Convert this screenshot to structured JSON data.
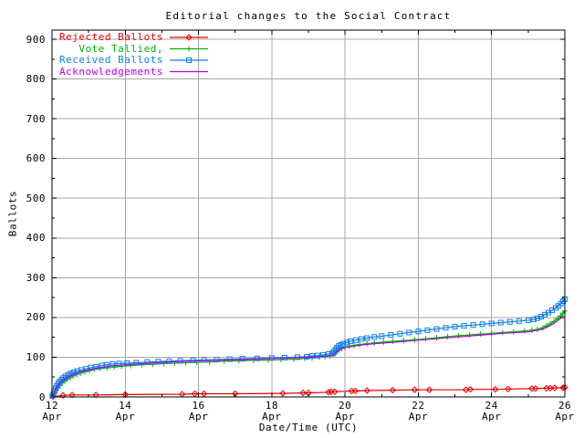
{
  "title": "Editorial changes to the Social Contract",
  "x_axis": {
    "label": "Date/Time (UTC)",
    "range": [
      12,
      26
    ],
    "major_ticks": [
      {
        "line1": "12",
        "line2": "Apr",
        "value": 12
      },
      {
        "line1": "14",
        "line2": "Apr",
        "value": 14
      },
      {
        "line1": "16",
        "line2": "Apr",
        "value": 16
      },
      {
        "line1": "18",
        "line2": "Apr",
        "value": 18
      },
      {
        "line1": "20",
        "line2": "Apr",
        "value": 20
      },
      {
        "line1": "22",
        "line2": "Apr",
        "value": 22
      },
      {
        "line1": "24",
        "line2": "Apr",
        "value": 24
      },
      {
        "line1": "26",
        "line2": "Apr",
        "value": 26
      }
    ],
    "minor_ticks": [
      13,
      15,
      17,
      19,
      21,
      23,
      25
    ]
  },
  "y_axis": {
    "label": "Ballots",
    "range": [
      0,
      923
    ],
    "major_ticks": [
      {
        "label": "0",
        "value": 0
      },
      {
        "label": "100",
        "value": 100
      },
      {
        "label": "200",
        "value": 200
      },
      {
        "label": "300",
        "value": 300
      },
      {
        "label": "400",
        "value": 400
      },
      {
        "label": "500",
        "value": 500
      },
      {
        "label": "600",
        "value": 600
      },
      {
        "label": "700",
        "value": 700
      },
      {
        "label": "800",
        "value": 800
      },
      {
        "label": "900",
        "value": 900
      }
    ],
    "minor_ticks": [
      50,
      150,
      250,
      350,
      450,
      550,
      650,
      750,
      850
    ]
  },
  "colors": {
    "background": "#ffffff",
    "grid": "#a8a8a8",
    "axis": "#000000",
    "rejected": "#e60000",
    "tallied": "#00b400",
    "received": "#0d7ee8",
    "acknowledgements": "#b400e6"
  },
  "chart_data": {
    "type": "line",
    "title": "Editorial changes to the Social Contract",
    "xlabel": "Date/Time (UTC)",
    "ylabel": "Ballots",
    "x_unit": "day of April (UTC)",
    "xlim": [
      12,
      26
    ],
    "ylim": [
      0,
      923
    ],
    "grid": true,
    "legend_position": "top-left",
    "series": [
      {
        "name": "Rejected Ballots",
        "color_key": "rejected",
        "marker": "diamond",
        "points": [
          [
            12.03,
            1
          ],
          [
            12.3,
            4
          ],
          [
            12.55,
            5
          ],
          [
            13.2,
            5
          ],
          [
            14,
            6
          ],
          [
            15.55,
            7
          ],
          [
            15.9,
            8
          ],
          [
            16.15,
            8
          ],
          [
            17,
            8
          ],
          [
            18.3,
            9
          ],
          [
            18.85,
            10
          ],
          [
            19,
            10
          ],
          [
            19.55,
            12
          ],
          [
            19.62,
            13
          ],
          [
            19.72,
            13
          ],
          [
            20.18,
            15
          ],
          [
            20.28,
            15
          ],
          [
            20.6,
            16
          ],
          [
            21.3,
            17
          ],
          [
            21.9,
            18
          ],
          [
            22.3,
            18
          ],
          [
            23.3,
            18
          ],
          [
            23.42,
            19
          ],
          [
            24.1,
            19
          ],
          [
            24.45,
            20
          ],
          [
            25.1,
            21
          ],
          [
            25.2,
            21
          ],
          [
            25.5,
            22
          ],
          [
            25.6,
            22
          ],
          [
            25.72,
            23
          ],
          [
            25.95,
            23
          ],
          [
            26,
            24
          ]
        ]
      },
      {
        "name": "Vote Tallied,",
        "color_key": "tallied",
        "marker": "plus",
        "points": [
          [
            12.04,
            2
          ],
          [
            12.08,
            9
          ],
          [
            12.12,
            16
          ],
          [
            12.17,
            23
          ],
          [
            12.22,
            29
          ],
          [
            12.28,
            35
          ],
          [
            12.35,
            40
          ],
          [
            12.42,
            45
          ],
          [
            12.5,
            49
          ],
          [
            12.58,
            53
          ],
          [
            12.68,
            57
          ],
          [
            12.78,
            60
          ],
          [
            12.9,
            63
          ],
          [
            13.02,
            66
          ],
          [
            13.15,
            69
          ],
          [
            13.3,
            71
          ],
          [
            13.5,
            73
          ],
          [
            13.7,
            75
          ],
          [
            13.9,
            77
          ],
          [
            14.15,
            79
          ],
          [
            14.45,
            81
          ],
          [
            14.75,
            82
          ],
          [
            15.05,
            84
          ],
          [
            15.35,
            85
          ],
          [
            15.65,
            86
          ],
          [
            15.95,
            87
          ],
          [
            16.3,
            88
          ],
          [
            16.7,
            90
          ],
          [
            17.1,
            91
          ],
          [
            17.5,
            92
          ],
          [
            17.9,
            93
          ],
          [
            18.25,
            94
          ],
          [
            18.6,
            95
          ],
          [
            18.9,
            97
          ],
          [
            19.1,
            98
          ],
          [
            19.3,
            100
          ],
          [
            19.45,
            101
          ],
          [
            19.58,
            103
          ],
          [
            19.68,
            105
          ],
          [
            19.73,
            109
          ],
          [
            19.78,
            114
          ],
          [
            19.84,
            118
          ],
          [
            19.91,
            122
          ],
          [
            20,
            125
          ],
          [
            20.12,
            128
          ],
          [
            20.25,
            130
          ],
          [
            20.4,
            132
          ],
          [
            20.6,
            134
          ],
          [
            20.8,
            136
          ],
          [
            21.05,
            138
          ],
          [
            21.3,
            140
          ],
          [
            21.6,
            142
          ],
          [
            21.9,
            144
          ],
          [
            22.2,
            146
          ],
          [
            22.5,
            149
          ],
          [
            22.8,
            152
          ],
          [
            23.1,
            154
          ],
          [
            23.4,
            156
          ],
          [
            23.7,
            158
          ],
          [
            24,
            160
          ],
          [
            24.3,
            162
          ],
          [
            24.6,
            164
          ],
          [
            24.9,
            166
          ],
          [
            25.1,
            168
          ],
          [
            25.25,
            170
          ],
          [
            25.4,
            174
          ],
          [
            25.5,
            179
          ],
          [
            25.6,
            184
          ],
          [
            25.7,
            190
          ],
          [
            25.8,
            197
          ],
          [
            25.88,
            204
          ],
          [
            25.95,
            211
          ],
          [
            26,
            216
          ]
        ]
      },
      {
        "name": "Received Ballots",
        "color_key": "received",
        "marker": "square",
        "points": [
          [
            12.01,
            2
          ],
          [
            12.04,
            8
          ],
          [
            12.07,
            15
          ],
          [
            12.1,
            22
          ],
          [
            12.13,
            28
          ],
          [
            12.17,
            34
          ],
          [
            12.21,
            39
          ],
          [
            12.26,
            44
          ],
          [
            12.31,
            48
          ],
          [
            12.37,
            52
          ],
          [
            12.44,
            56
          ],
          [
            12.51,
            59
          ],
          [
            12.59,
            62
          ],
          [
            12.69,
            65
          ],
          [
            12.8,
            68
          ],
          [
            12.93,
            71
          ],
          [
            13.06,
            74
          ],
          [
            13.2,
            76
          ],
          [
            13.36,
            79
          ],
          [
            13.5,
            81
          ],
          [
            13.66,
            83
          ],
          [
            13.83,
            84
          ],
          [
            14.05,
            85
          ],
          [
            14.3,
            86
          ],
          [
            14.6,
            88
          ],
          [
            14.9,
            89
          ],
          [
            15.2,
            90
          ],
          [
            15.5,
            91
          ],
          [
            15.85,
            92
          ],
          [
            16.15,
            93
          ],
          [
            16.5,
            94
          ],
          [
            16.85,
            95
          ],
          [
            17.2,
            96
          ],
          [
            17.6,
            97
          ],
          [
            18,
            98
          ],
          [
            18.35,
            99
          ],
          [
            18.7,
            100
          ],
          [
            18.95,
            101
          ],
          [
            19.1,
            103
          ],
          [
            19.25,
            104
          ],
          [
            19.4,
            106
          ],
          [
            19.55,
            108
          ],
          [
            19.65,
            110
          ],
          [
            19.7,
            114
          ],
          [
            19.74,
            119
          ],
          [
            19.78,
            124
          ],
          [
            19.82,
            128
          ],
          [
            19.88,
            131
          ],
          [
            19.95,
            134
          ],
          [
            20.05,
            137
          ],
          [
            20.15,
            140
          ],
          [
            20.3,
            143
          ],
          [
            20.45,
            146
          ],
          [
            20.6,
            148
          ],
          [
            20.8,
            151
          ],
          [
            21,
            153
          ],
          [
            21.25,
            156
          ],
          [
            21.5,
            159
          ],
          [
            21.75,
            162
          ],
          [
            22,
            165
          ],
          [
            22.25,
            168
          ],
          [
            22.5,
            171
          ],
          [
            22.75,
            174
          ],
          [
            23,
            177
          ],
          [
            23.25,
            179
          ],
          [
            23.5,
            181
          ],
          [
            23.75,
            183
          ],
          [
            24,
            185
          ],
          [
            24.25,
            187
          ],
          [
            24.5,
            189
          ],
          [
            24.75,
            191
          ],
          [
            25,
            193
          ],
          [
            25.15,
            195
          ],
          [
            25.25,
            198
          ],
          [
            25.35,
            202
          ],
          [
            25.45,
            207
          ],
          [
            25.55,
            212
          ],
          [
            25.65,
            218
          ],
          [
            25.75,
            224
          ],
          [
            25.82,
            229
          ],
          [
            25.89,
            235
          ],
          [
            25.95,
            241
          ],
          [
            26,
            246
          ]
        ]
      },
      {
        "name": "Acknowledgements",
        "color_key": "acknowledgements",
        "marker": "none",
        "points": [
          [
            12.02,
            1
          ],
          [
            12.1,
            20
          ],
          [
            12.2,
            33
          ],
          [
            12.3,
            43
          ],
          [
            12.45,
            51
          ],
          [
            12.6,
            58
          ],
          [
            12.8,
            64
          ],
          [
            13,
            69
          ],
          [
            13.3,
            74
          ],
          [
            13.6,
            78
          ],
          [
            14,
            81
          ],
          [
            14.5,
            84
          ],
          [
            15,
            87
          ],
          [
            15.5,
            89
          ],
          [
            16,
            91
          ],
          [
            16.5,
            92
          ],
          [
            17,
            94
          ],
          [
            17.5,
            95
          ],
          [
            18,
            97
          ],
          [
            18.5,
            98
          ],
          [
            19,
            100
          ],
          [
            19.3,
            102
          ],
          [
            19.55,
            104
          ],
          [
            19.68,
            106
          ],
          [
            19.74,
            112
          ],
          [
            19.8,
            117
          ],
          [
            19.9,
            121
          ],
          [
            20.05,
            125
          ],
          [
            20.25,
            128
          ],
          [
            20.5,
            131
          ],
          [
            20.8,
            134
          ],
          [
            21.1,
            136
          ],
          [
            21.5,
            139
          ],
          [
            21.9,
            142
          ],
          [
            22.3,
            145
          ],
          [
            22.7,
            148
          ],
          [
            23.1,
            151
          ],
          [
            23.5,
            154
          ],
          [
            23.9,
            157
          ],
          [
            24.3,
            160
          ],
          [
            24.7,
            162
          ],
          [
            25,
            164
          ],
          [
            25.2,
            167
          ],
          [
            25.4,
            171
          ],
          [
            25.55,
            177
          ],
          [
            25.7,
            185
          ],
          [
            25.8,
            192
          ],
          [
            25.9,
            199
          ],
          [
            25.96,
            204
          ]
        ]
      }
    ]
  }
}
